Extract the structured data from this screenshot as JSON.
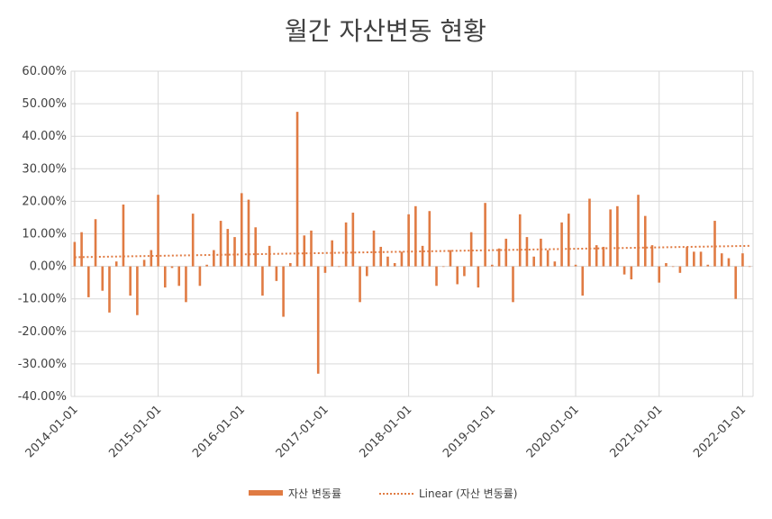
{
  "chart_data": {
    "type": "bar",
    "title": "월간 자산변동 현황",
    "y_tick_labels": [
      "60.00%",
      "50.00%",
      "40.00%",
      "30.00%",
      "20.00%",
      "10.00%",
      "0.00%",
      "-10.00%",
      "-20.00%",
      "-30.00%",
      "-40.00%"
    ],
    "ylim": [
      -40,
      60
    ],
    "x_tick_labels": [
      "2014-01-01",
      "2015-01-01",
      "2016-01-01",
      "2017-01-01",
      "2018-01-01",
      "2019-01-01",
      "2020-01-01",
      "2021-01-01",
      "2022-01-01"
    ],
    "x_start": "2014-01",
    "x_end": "2022-02",
    "grid": true,
    "legend_position": "bottom",
    "legend": {
      "bar_label": "자산 변동률",
      "trend_label": "Linear (자산 변동률)"
    },
    "colors": {
      "bar": "#E07B43",
      "trend": "#E07B43",
      "grid": "#D9D9D9",
      "text": "#404040",
      "title": "#404040"
    },
    "trendline": {
      "type": "linear",
      "start_value": 2.8,
      "end_value": 6.3
    },
    "series": [
      {
        "name": "자산 변동률",
        "x": [
          "2014-01",
          "2014-02",
          "2014-03",
          "2014-04",
          "2014-05",
          "2014-06",
          "2014-07",
          "2014-08",
          "2014-09",
          "2014-10",
          "2014-11",
          "2014-12",
          "2015-01",
          "2015-02",
          "2015-03",
          "2015-04",
          "2015-05",
          "2015-06",
          "2015-07",
          "2015-08",
          "2015-09",
          "2015-10",
          "2015-11",
          "2015-12",
          "2016-01",
          "2016-02",
          "2016-03",
          "2016-04",
          "2016-05",
          "2016-06",
          "2016-07",
          "2016-08",
          "2016-09",
          "2016-10",
          "2016-11",
          "2016-12",
          "2017-01",
          "2017-02",
          "2017-03",
          "2017-04",
          "2017-05",
          "2017-06",
          "2017-07",
          "2017-08",
          "2017-09",
          "2017-10",
          "2017-11",
          "2017-12",
          "2018-01",
          "2018-02",
          "2018-03",
          "2018-04",
          "2018-05",
          "2018-06",
          "2018-07",
          "2018-08",
          "2018-09",
          "2018-10",
          "2018-11",
          "2018-12",
          "2019-01",
          "2019-02",
          "2019-03",
          "2019-04",
          "2019-05",
          "2019-06",
          "2019-07",
          "2019-08",
          "2019-09",
          "2019-10",
          "2019-11",
          "2019-12",
          "2020-01",
          "2020-02",
          "2020-03",
          "2020-04",
          "2020-05",
          "2020-06",
          "2020-07",
          "2020-08",
          "2020-09",
          "2020-10",
          "2020-11",
          "2020-12",
          "2021-01",
          "2021-02",
          "2021-03",
          "2021-04",
          "2021-05",
          "2021-06",
          "2021-07",
          "2021-08",
          "2021-09",
          "2021-10",
          "2021-11",
          "2021-12",
          "2022-01",
          "2022-02"
        ],
        "values": [
          7.5,
          10.5,
          -9.5,
          14.5,
          -7.5,
          -14.2,
          1.5,
          19.0,
          -9.0,
          -15.0,
          2.0,
          5.0,
          22.0,
          -6.5,
          -0.5,
          -6.0,
          -11.0,
          16.2,
          -6.0,
          0.5,
          5.0,
          14.0,
          11.5,
          9.0,
          22.5,
          20.5,
          12.0,
          -9.0,
          6.3,
          -4.5,
          -15.5,
          1.0,
          47.5,
          9.5,
          11.0,
          -33.0,
          -2.0,
          8.0,
          0.0,
          13.5,
          16.5,
          -11.0,
          -3.0,
          11.0,
          6.0,
          3.0,
          1.0,
          4.5,
          16.0,
          18.5,
          6.3,
          17.0,
          -6.0,
          0.0,
          5.0,
          -5.5,
          -3.0,
          10.5,
          -6.5,
          19.5,
          0.5,
          5.5,
          8.5,
          -11.0,
          16.0,
          9.0,
          3.0,
          8.5,
          5.0,
          1.5,
          13.5,
          16.2,
          0.5,
          -9.0,
          20.8,
          6.5,
          6.0,
          17.5,
          18.5,
          -2.5,
          -4.0,
          22.0,
          15.5,
          6.5,
          -5.0,
          1.0,
          0.0,
          -2.0,
          6.0,
          4.5,
          4.5,
          0.5,
          14.0,
          4.0,
          2.5,
          -10.0,
          4.0,
          0.0
        ]
      }
    ]
  }
}
